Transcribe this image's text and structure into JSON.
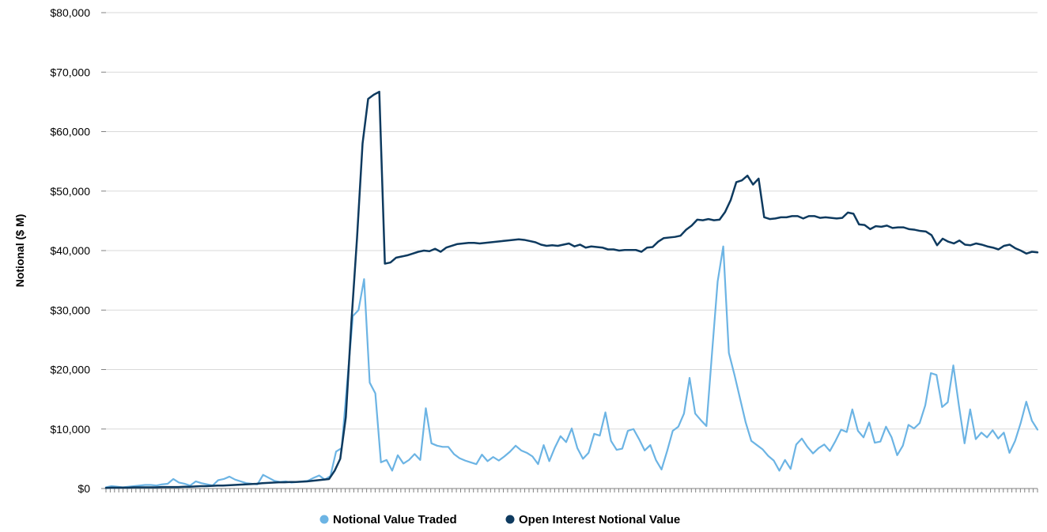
{
  "chart_data": {
    "type": "line",
    "title": "",
    "ylabel": "Notional ($ M)",
    "xlabel": "",
    "ylim": [
      0,
      80000
    ],
    "yticks": [
      0,
      10000,
      20000,
      30000,
      40000,
      50000,
      60000,
      70000,
      80000
    ],
    "ytick_labels": [
      "$0",
      "$10,000",
      "$20,000",
      "$30,000",
      "$40,000",
      "$50,000",
      "$60,000",
      "$70,000",
      "$80,000"
    ],
    "grid": true,
    "legend_position": "bottom",
    "x_tick_count": 219,
    "series": [
      {
        "name": "Notional Value Traded",
        "color": "#6cb4e4",
        "values": [
          200,
          400,
          300,
          200,
          300,
          400,
          500,
          600,
          600,
          500,
          700,
          800,
          1600,
          1000,
          800,
          500,
          1200,
          900,
          700,
          500,
          1400,
          1600,
          2000,
          1500,
          1200,
          900,
          800,
          700,
          2300,
          1800,
          1300,
          1100,
          1200,
          1000,
          1100,
          1200,
          1300,
          1800,
          2200,
          1500,
          2100,
          6200,
          6800,
          18000,
          29000,
          30000,
          35200,
          17800,
          16000,
          4400,
          4800,
          3000,
          5600,
          4200,
          4800,
          5800,
          4800,
          13500,
          7600,
          7200,
          7000,
          7000,
          5800,
          5100,
          4700,
          4400,
          4100,
          5700,
          4600,
          5300,
          4700,
          5400,
          6200,
          7200,
          6400,
          6000,
          5400,
          4100,
          7300,
          4600,
          6900,
          8800,
          7800,
          10100,
          6800,
          5000,
          6000,
          9200,
          8900,
          12800,
          8000,
          6500,
          6700,
          9700,
          10000,
          8300,
          6400,
          7300,
          4800,
          3200,
          6300,
          9700,
          10400,
          12600,
          18600,
          12600,
          11500,
          10500,
          22800,
          34800,
          40700,
          22800,
          19100,
          15100,
          11100,
          8000,
          7300,
          6600,
          5500,
          4700,
          3000,
          4800,
          3300,
          7400,
          8400,
          7000,
          5900,
          6800,
          7400,
          6300,
          8000,
          9900,
          9500,
          13300,
          9700,
          8600,
          11100,
          7700,
          7900,
          10400,
          8600,
          5600,
          7200,
          10700,
          10100,
          11000,
          14000,
          19400,
          19100,
          13700,
          14500,
          20700,
          13900,
          7600,
          13300,
          8300,
          9400,
          8600,
          9800,
          8400,
          9400,
          6000,
          8000,
          11000,
          14600,
          11400,
          9900
        ]
      },
      {
        "name": "Open Interest Notional Value",
        "color": "#0e3a5f",
        "values": [
          100,
          150,
          150,
          150,
          150,
          200,
          200,
          200,
          200,
          200,
          250,
          250,
          250,
          250,
          300,
          300,
          350,
          400,
          400,
          450,
          500,
          500,
          550,
          600,
          650,
          700,
          750,
          800,
          900,
          950,
          1000,
          1050,
          1050,
          1100,
          1100,
          1150,
          1200,
          1300,
          1400,
          1500,
          1600,
          3000,
          5000,
          12000,
          28000,
          42000,
          58000,
          65500,
          66200,
          66700,
          37800,
          38000,
          38800,
          39000,
          39200,
          39500,
          39800,
          40000,
          39900,
          40300,
          39800,
          40500,
          40800,
          41100,
          41200,
          41300,
          41300,
          41200,
          41300,
          41400,
          41500,
          41600,
          41700,
          41800,
          41900,
          41800,
          41600,
          41400,
          41000,
          40800,
          40900,
          40800,
          41000,
          41200,
          40700,
          41000,
          40500,
          40700,
          40600,
          40500,
          40200,
          40200,
          40000,
          40100,
          40100,
          40100,
          39800,
          40500,
          40600,
          41500,
          42100,
          42200,
          42300,
          42500,
          43500,
          44200,
          45200,
          45100,
          45300,
          45100,
          45200,
          46500,
          48500,
          51500,
          51800,
          52600,
          51100,
          52100,
          45600,
          45300,
          45400,
          45600,
          45600,
          45800,
          45800,
          45400,
          45800,
          45800,
          45500,
          45600,
          45500,
          45400,
          45500,
          46400,
          46200,
          44400,
          44300,
          43600,
          44100,
          44000,
          44200,
          43800,
          43900,
          43900,
          43600,
          43500,
          43300,
          43200,
          42600,
          40900,
          42000,
          41500,
          41200,
          41700,
          41000,
          40900,
          41200,
          41000,
          40700,
          40500,
          40200,
          40800,
          41000,
          40400,
          40000,
          39500,
          39800,
          39700
        ]
      }
    ]
  }
}
